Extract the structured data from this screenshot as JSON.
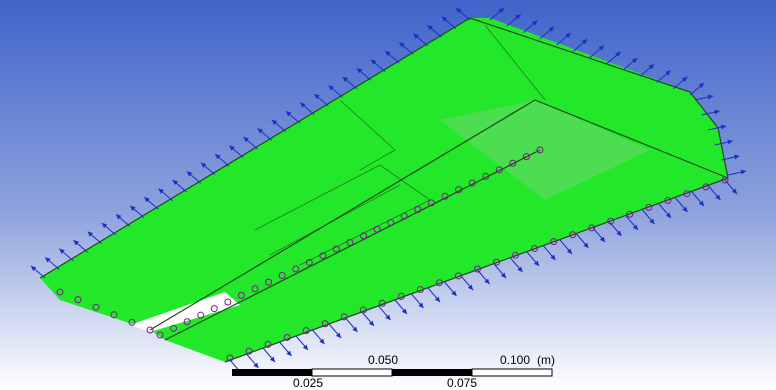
{
  "viewport": {
    "background_top_color": "#3f63c9",
    "background_bottom_color": "#ffffff",
    "body_color": "#23e82a",
    "body_shadow_color": "#18b31e",
    "arrow_color": "#1a2fc4",
    "support_color": "#7a1a8c",
    "edge_color": "#1c4a1c"
  },
  "scale_bar": {
    "label_top_mid": "0.050",
    "label_top_right": "0.100",
    "unit": "(m)",
    "label_bottom_left": "0.025",
    "label_bottom_right": "0.075"
  }
}
